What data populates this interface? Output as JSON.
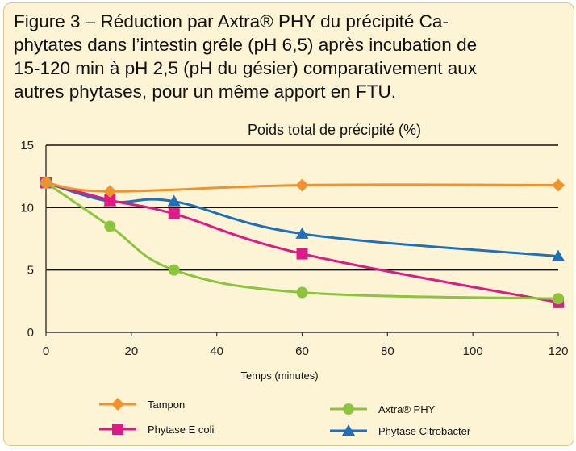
{
  "caption": "Figure 3 – Réduction par Axtra® PHY du précipité Ca-\nphytates dans l’intestin grêle (pH 6,5) après incubation de\n15-120 min à pH 2,5 (pH du gésier) comparativement aux\nautres phytases, pour un même apport en FTU.",
  "chart_data": {
    "type": "line",
    "title": "Poids total de précipité (%)",
    "xlabel": "Temps (minutes)",
    "ylabel": "",
    "xlim": [
      0,
      120
    ],
    "ylim": [
      0,
      15
    ],
    "xticks": [
      0,
      20,
      40,
      60,
      80,
      100,
      120
    ],
    "yticks": [
      0,
      5,
      10,
      15
    ],
    "grid": "horizontal",
    "legend_position": "bottom",
    "series": [
      {
        "name": "Tampon",
        "color": "#f0922e",
        "marker": "diamond",
        "x": [
          0,
          15,
          60,
          120
        ],
        "y": [
          12,
          11.3,
          11.8,
          11.8
        ]
      },
      {
        "name": "Axtra® PHY",
        "color": "#8cc43e",
        "marker": "circle",
        "x": [
          0,
          15,
          30,
          60,
          120
        ],
        "y": [
          12,
          8.5,
          5.0,
          3.2,
          2.7
        ]
      },
      {
        "name": "Phytase E coli",
        "color": "#dc1b86",
        "marker": "square",
        "x": [
          0,
          15,
          30,
          60,
          120
        ],
        "y": [
          12,
          10.6,
          9.5,
          6.3,
          2.4
        ]
      },
      {
        "name": "Phytase Citrobacter",
        "color": "#1f70b8",
        "marker": "triangle",
        "x": [
          0,
          15,
          30,
          60,
          120
        ],
        "y": [
          12,
          10.5,
          10.5,
          7.9,
          6.1
        ]
      }
    ]
  }
}
